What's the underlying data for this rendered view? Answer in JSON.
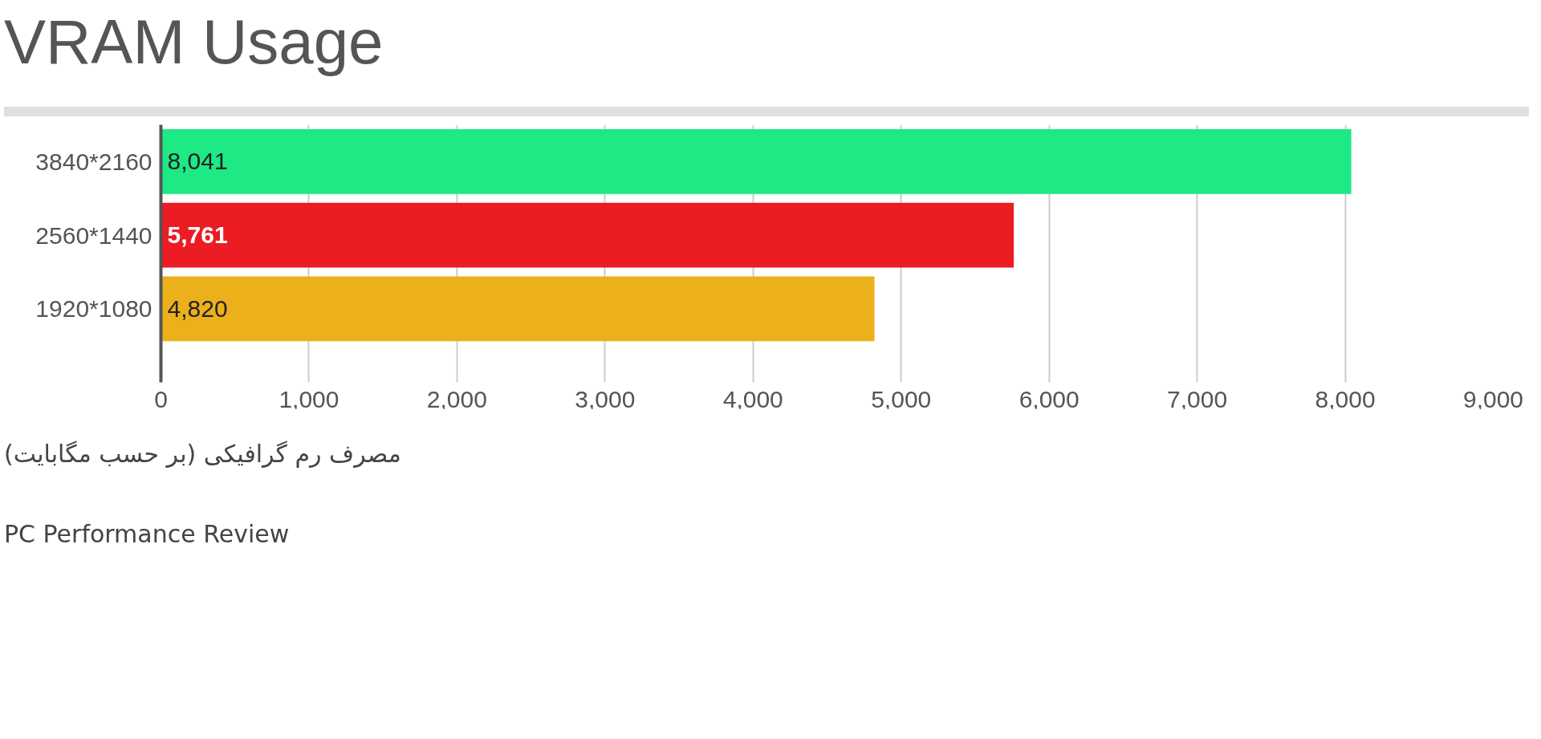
{
  "chart_data": {
    "type": "bar",
    "orientation": "horizontal",
    "title": "VRAM Usage",
    "categories": [
      "3840*2160",
      "2560*1440",
      "1920*1080"
    ],
    "values": [
      8041,
      5761,
      4820
    ],
    "colors": [
      "#1de985",
      "#ec1c24",
      "#ecb01b"
    ],
    "xlim": [
      0,
      9000
    ],
    "xticks": [
      0,
      {
        "value": 1000,
        "label": "1,000"
      },
      {
        "value": 2000,
        "label": "2,000"
      },
      {
        "value": 3000,
        "label": "3,000"
      },
      {
        "value": 4000,
        "label": "4,000"
      },
      {
        "value": 5000,
        "label": "5,000"
      },
      {
        "value": 6000,
        "label": "6,000"
      },
      {
        "value": 7000,
        "label": "7,000"
      },
      {
        "value": 8000,
        "label": "8,000"
      },
      {
        "value": 9000,
        "label": "9,000"
      }
    ],
    "value_labels": [
      "8,041",
      "5,761",
      "4,820"
    ],
    "grid": "x",
    "annotations": [
      "مصرف رم گرافیکی (بر حسب مگابایت)",
      "PC Performance Review"
    ]
  }
}
